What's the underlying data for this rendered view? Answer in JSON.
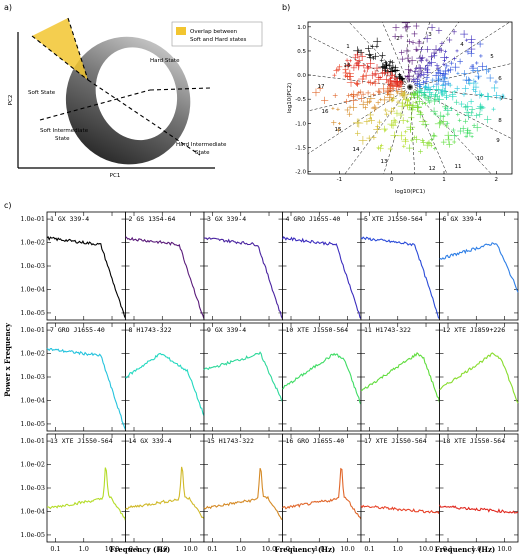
{
  "chart_data": [
    {
      "type": "diagram",
      "panel_label": "a)",
      "legend_text": "Overlap between Soft and Hard states",
      "legend_color": "#f2c530",
      "region_labels": [
        "Hard State",
        "Soft State",
        "Soft Intermediate State",
        "Hard Intermediate State"
      ],
      "xlabel": "PC1",
      "ylabel": "PC2"
    },
    {
      "type": "scatter",
      "panel_label": "b)",
      "xlabel": "log10(PC1)",
      "ylabel": "log10(PC2)",
      "xlim": [
        -1.6,
        2.3
      ],
      "ylim": [
        -2.05,
        1.1
      ],
      "xticks": [
        "-1",
        "0",
        "1",
        "2"
      ],
      "yticks": [
        "-2.0",
        "-1.5",
        "-1.0",
        "-0.5",
        "0.0",
        "0.5",
        "1.0"
      ],
      "center": [
        0.35,
        -0.25
      ],
      "zone_labels": [
        "1",
        "2",
        "3",
        "4",
        "5",
        "6",
        "7",
        "8",
        "9",
        "10",
        "11",
        "12",
        "13",
        "14",
        "15",
        "16",
        "17",
        "18"
      ],
      "zone_colors": [
        "#000000",
        "#5a1b7a",
        "#4a24a0",
        "#3c2dbe",
        "#2b4bd8",
        "#2f7fe6",
        "#25c3dd",
        "#23d8c0",
        "#2ed89a",
        "#3fdc64",
        "#5fdc3c",
        "#88dc2e",
        "#b4dc28",
        "#d0b92a",
        "#d58a26",
        "#e0662a",
        "#e8442a",
        "#e0281f"
      ]
    },
    {
      "type": "line",
      "panel_label": "c)",
      "xlabel": "Frequency (Hz)",
      "ylabel": "Power x Frequency",
      "xscale": "log",
      "yscale": "log",
      "xlim": [
        0.05,
        30
      ],
      "ylim": [
        5e-06,
        0.2
      ],
      "xticks": [
        "0.1",
        "1.0",
        "10.0"
      ],
      "yticks": [
        "1.0e-01",
        "1.0e-02",
        "1.0e-03",
        "1.0e-04",
        "1.0e-05"
      ],
      "series": [
        {
          "name": "GX 339-4",
          "index": "1",
          "color": "#000000",
          "shape": "flat",
          "peak": 0
        },
        {
          "name": "GS 1354-64",
          "index": "2",
          "color": "#5a1b7a",
          "shape": "flat",
          "peak": 0
        },
        {
          "name": "GX 339-4",
          "index": "3",
          "color": "#4a24a0",
          "shape": "flat",
          "peak": 0
        },
        {
          "name": "GRO J1655-40",
          "index": "4",
          "color": "#3c2dbe",
          "shape": "flat",
          "peak": 0
        },
        {
          "name": "XTE J1550-564",
          "index": "5",
          "color": "#2b4bd8",
          "shape": "flat",
          "peak": 0
        },
        {
          "name": "GX 339-4",
          "index": "6",
          "color": "#2f7fe6",
          "shape": "rise",
          "peak": 0
        },
        {
          "name": "GRO J1655-40",
          "index": "7",
          "color": "#25c3dd",
          "shape": "flat",
          "peak": 0
        },
        {
          "name": "H1743-322",
          "index": "8",
          "color": "#23d8c0",
          "shape": "peak",
          "peak": 0.9
        },
        {
          "name": "GX 339-4",
          "index": "9",
          "color": "#2ed89a",
          "shape": "rise",
          "peak": 0
        },
        {
          "name": "XTE J1550-564",
          "index": "10",
          "color": "#3fdc64",
          "shape": "peak",
          "peak": 3.5
        },
        {
          "name": "H1743-322",
          "index": "11",
          "color": "#5fdc3c",
          "shape": "peak",
          "peak": 5
        },
        {
          "name": "XTE J1859+226",
          "index": "12",
          "color": "#88dc2e",
          "shape": "peak",
          "peak": 4
        },
        {
          "name": "XTE J1550-564",
          "index": "13",
          "color": "#b4dc28",
          "shape": "qpo",
          "peak": 6
        },
        {
          "name": "GX 339-4",
          "index": "14",
          "color": "#d0b92a",
          "shape": "qpo",
          "peak": 5
        },
        {
          "name": "H1743-322",
          "index": "15",
          "color": "#d58a26",
          "shape": "qpo",
          "peak": 5
        },
        {
          "name": "GRO J1655-40",
          "index": "16",
          "color": "#e0662a",
          "shape": "qpo",
          "peak": 6
        },
        {
          "name": "XTE J1550-564",
          "index": "17",
          "color": "#e8442a",
          "shape": "low",
          "peak": 0
        },
        {
          "name": "XTE J1550-564",
          "index": "18",
          "color": "#e0281f",
          "shape": "low",
          "peak": 0
        }
      ]
    }
  ]
}
